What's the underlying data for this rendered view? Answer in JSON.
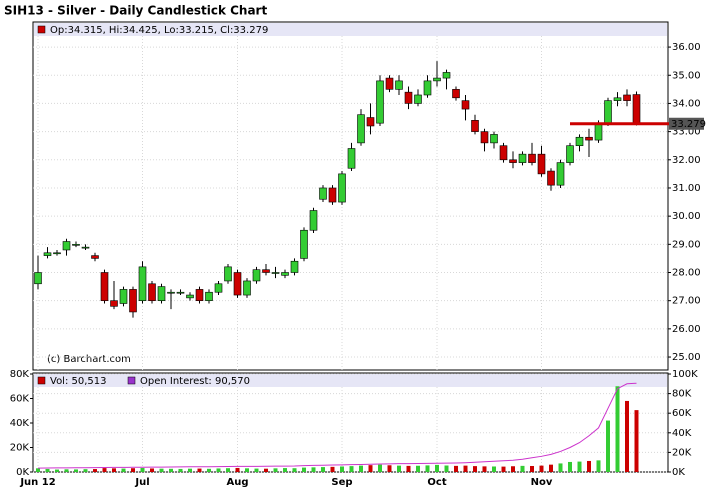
{
  "chart_data": {
    "type": "candlestick",
    "title": "SIH13 - Silver - Daily Candlestick Chart",
    "ohlc_label": "Op:34.315, Hi:34.425, Lo:33.215, Cl:33.279",
    "watermark": "(c) Barchart.com",
    "up_color": "#33cc33",
    "down_color": "#cc0000",
    "categories": [
      "Jun 12",
      null,
      null,
      null,
      null,
      null,
      null,
      null,
      null,
      null,
      null,
      "Jul",
      null,
      null,
      null,
      null,
      null,
      null,
      null,
      null,
      null,
      "Aug",
      null,
      null,
      null,
      null,
      null,
      null,
      null,
      null,
      null,
      null,
      "Sep",
      null,
      null,
      null,
      null,
      null,
      null,
      null,
      null,
      null,
      "Oct",
      null,
      null,
      null,
      null,
      null,
      null,
      null,
      null,
      null,
      null,
      "Nov",
      null,
      null,
      null,
      null,
      null,
      null,
      null,
      null,
      null,
      null
    ],
    "open": [
      27.6,
      28.6,
      28.7,
      28.8,
      29.0,
      28.9,
      28.6,
      28.0,
      27.0,
      26.9,
      27.4,
      27.0,
      27.6,
      27.0,
      27.3,
      27.3,
      27.1,
      27.4,
      27.0,
      27.3,
      27.7,
      28.0,
      27.2,
      27.7,
      28.1,
      28.0,
      27.9,
      28.0,
      28.5,
      29.5,
      30.6,
      31.0,
      30.5,
      31.7,
      32.6,
      33.5,
      33.3,
      34.9,
      34.5,
      34.4,
      34.0,
      34.3,
      34.8,
      34.9,
      34.5,
      34.1,
      33.4,
      33.0,
      32.6,
      32.5,
      32.0,
      31.9,
      32.2,
      32.2,
      31.6,
      31.1,
      31.9,
      32.5,
      32.8,
      32.7,
      33.3,
      34.1,
      34.3,
      34.315
    ],
    "high": [
      28.6,
      28.9,
      28.8,
      29.2,
      29.1,
      29.0,
      28.7,
      28.1,
      27.7,
      27.5,
      27.5,
      28.4,
      27.7,
      27.6,
      27.4,
      27.4,
      27.3,
      27.5,
      27.4,
      27.7,
      28.3,
      28.1,
      27.8,
      28.2,
      28.3,
      28.2,
      28.1,
      28.5,
      29.6,
      30.3,
      31.1,
      31.1,
      31.6,
      32.6,
      33.8,
      34.0,
      35.0,
      35.0,
      35.0,
      34.6,
      34.5,
      35.0,
      35.5,
      35.2,
      34.6,
      34.3,
      33.6,
      33.1,
      33.0,
      32.6,
      32.3,
      32.3,
      32.6,
      32.5,
      31.7,
      32.0,
      32.6,
      32.9,
      33.1,
      33.4,
      34.2,
      34.4,
      34.5,
      34.425
    ],
    "low": [
      27.4,
      28.5,
      28.6,
      28.6,
      28.9,
      28.8,
      28.4,
      26.9,
      26.7,
      26.8,
      26.4,
      26.9,
      26.9,
      26.9,
      26.7,
      27.2,
      27.0,
      26.9,
      26.9,
      27.2,
      27.6,
      27.1,
      27.1,
      27.6,
      27.9,
      27.8,
      27.8,
      27.9,
      28.4,
      29.4,
      30.5,
      30.4,
      30.4,
      31.6,
      32.5,
      32.9,
      33.2,
      34.4,
      34.3,
      33.8,
      33.9,
      34.2,
      34.6,
      34.5,
      34.1,
      33.4,
      32.9,
      32.3,
      32.4,
      31.9,
      31.7,
      31.8,
      31.8,
      31.4,
      30.9,
      31.0,
      31.8,
      32.3,
      32.1,
      32.6,
      33.2,
      33.9,
      33.9,
      33.215
    ],
    "close": [
      28.0,
      28.7,
      28.7,
      29.1,
      29.0,
      28.9,
      28.5,
      27.0,
      26.8,
      27.4,
      26.6,
      28.2,
      27.0,
      27.5,
      27.3,
      27.3,
      27.2,
      27.0,
      27.3,
      27.6,
      28.2,
      27.2,
      27.7,
      28.1,
      28.0,
      28.0,
      28.0,
      28.4,
      29.5,
      30.2,
      31.0,
      30.5,
      31.5,
      32.4,
      33.6,
      33.2,
      34.8,
      34.5,
      34.8,
      34.0,
      34.3,
      34.8,
      34.9,
      35.1,
      34.2,
      33.8,
      33.0,
      32.6,
      32.9,
      32.0,
      31.9,
      32.2,
      31.9,
      31.5,
      31.1,
      31.9,
      32.5,
      32.8,
      32.7,
      33.3,
      34.1,
      34.2,
      34.1,
      33.279
    ],
    "last_price": {
      "value": 33.279,
      "label": "33.279"
    },
    "ylim": [
      24.54,
      36.89
    ],
    "yticks": [
      {
        "value": 25,
        "label": "25.00"
      },
      {
        "value": 26,
        "label": "26.00"
      },
      {
        "value": 27,
        "label": "27.00"
      },
      {
        "value": 28,
        "label": "28.00"
      },
      {
        "value": 29,
        "label": "29.00"
      },
      {
        "value": 30,
        "label": "30.00"
      },
      {
        "value": 31,
        "label": "31.00"
      },
      {
        "value": 32,
        "label": "32.00"
      },
      {
        "value": 33,
        "label": "33.00"
      },
      {
        "value": 34,
        "label": "34.00"
      },
      {
        "value": 35,
        "label": "35.00"
      },
      {
        "value": 36,
        "label": "36.00"
      }
    ],
    "volume": {
      "label": "Vol: 50,513",
      "values": [
        3000,
        2500,
        2000,
        2200,
        2100,
        2300,
        2400,
        3200,
        3000,
        2800,
        3100,
        3300,
        2900,
        2700,
        2600,
        2500,
        2700,
        2800,
        2600,
        2900,
        3100,
        3300,
        3000,
        2800,
        2700,
        3000,
        3200,
        3100,
        3600,
        3800,
        4000,
        4200,
        4500,
        4800,
        5200,
        5600,
        6000,
        5500,
        5200,
        5000,
        5100,
        5400,
        5800,
        5300,
        5000,
        5200,
        4800,
        4600,
        4500,
        4400,
        4700,
        5000,
        4900,
        5200,
        6000,
        7000,
        8200,
        8500,
        9000,
        9500,
        42000,
        70000,
        58000,
        50513
      ],
      "ylim": [
        0,
        80000
      ],
      "yticks": [
        {
          "value": 0,
          "label": "0K"
        },
        {
          "value": 20000,
          "label": "20K"
        },
        {
          "value": 40000,
          "label": "40K"
        },
        {
          "value": 60000,
          "label": "60K"
        },
        {
          "value": 80000,
          "label": "80K"
        }
      ]
    },
    "open_interest": {
      "label": "Open Interest: 90,570",
      "color": "#cc33cc",
      "axis": "y2",
      "values": [
        4000,
        4100,
        4200,
        4200,
        4300,
        4400,
        4500,
        4600,
        4700,
        4700,
        4800,
        4900,
        5000,
        5000,
        5100,
        5200,
        5300,
        5300,
        5400,
        5500,
        5600,
        5700,
        5800,
        5800,
        5900,
        6000,
        6000,
        6100,
        6500,
        6700,
        6900,
        7100,
        7300,
        7500,
        7700,
        7900,
        8100,
        8300,
        8500,
        8600,
        8700,
        8800,
        8900,
        9000,
        9200,
        9500,
        10000,
        10500,
        11000,
        11500,
        12000,
        13000,
        14500,
        16000,
        18000,
        21000,
        25000,
        30000,
        37000,
        45000,
        65000,
        85000,
        90000,
        90570
      ]
    },
    "y2lim": [
      0,
      100000
    ],
    "y2ticks": [
      {
        "value": 0,
        "label": "0K"
      },
      {
        "value": 20000,
        "label": "20K"
      },
      {
        "value": 40000,
        "label": "40K"
      },
      {
        "value": 60000,
        "label": "60K"
      },
      {
        "value": 80000,
        "label": "80K"
      },
      {
        "value": 100000,
        "label": "100K"
      }
    ],
    "grid": true
  }
}
